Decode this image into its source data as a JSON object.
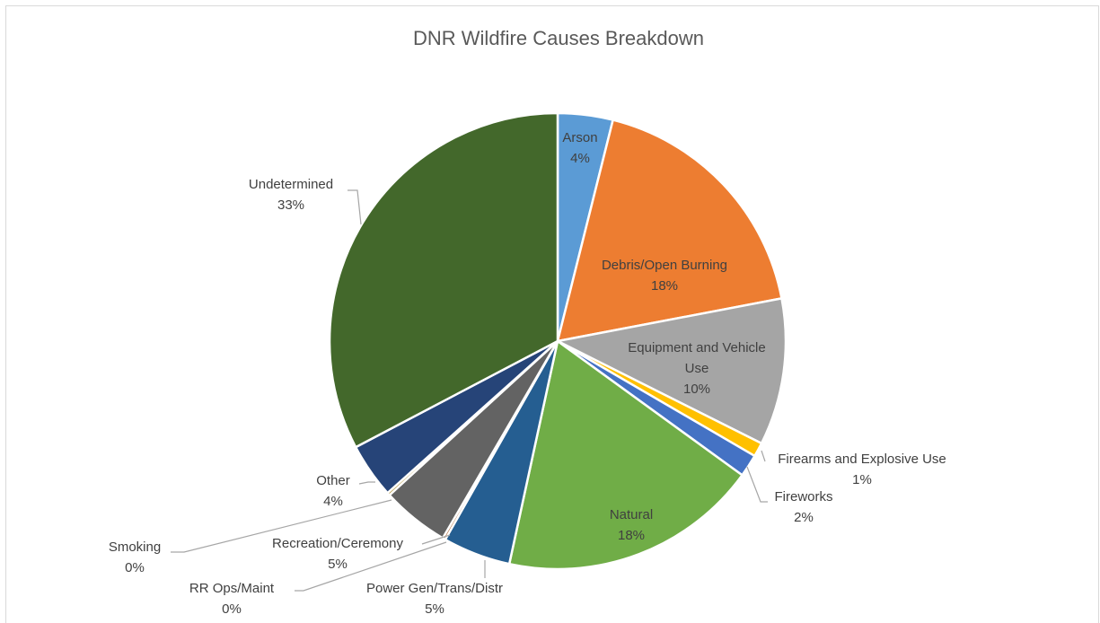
{
  "chart_data": {
    "type": "pie",
    "title": "DNR Wildfire Causes Breakdown",
    "slices": [
      {
        "name": "Arson",
        "value": 3.9,
        "label": "4%",
        "color": "#5b9bd5"
      },
      {
        "name": "Debris/Open Burning",
        "value": 18.1,
        "label": "18%",
        "color": "#ed7d31"
      },
      {
        "name": "Equipment and Vehicle Use",
        "value": 10.4,
        "label": "10%",
        "color": "#a5a5a5"
      },
      {
        "name": "Firearms and Explosive Use",
        "value": 1.0,
        "label": "1%",
        "color": "#ffc000"
      },
      {
        "name": "Fireworks",
        "value": 1.6,
        "label": "2%",
        "color": "#4472c4"
      },
      {
        "name": "Natural",
        "value": 18.4,
        "label": "18%",
        "color": "#70ad47"
      },
      {
        "name": "Power Gen/Trans/Distr",
        "value": 4.8,
        "label": "5%",
        "color": "#255e91"
      },
      {
        "name": "RR Ops/Maint",
        "value": 0.2,
        "label": "0%",
        "color": "#9e480e"
      },
      {
        "name": "Recreation/Ceremony",
        "value": 4.8,
        "label": "5%",
        "color": "#636363"
      },
      {
        "name": "Smoking",
        "value": 0.2,
        "label": "0%",
        "color": "#997300"
      },
      {
        "name": "Other",
        "value": 3.9,
        "label": "4%",
        "color": "#264478"
      },
      {
        "name": "Undetermined",
        "value": 32.7,
        "label": "33%",
        "color": "#43682b"
      }
    ]
  }
}
